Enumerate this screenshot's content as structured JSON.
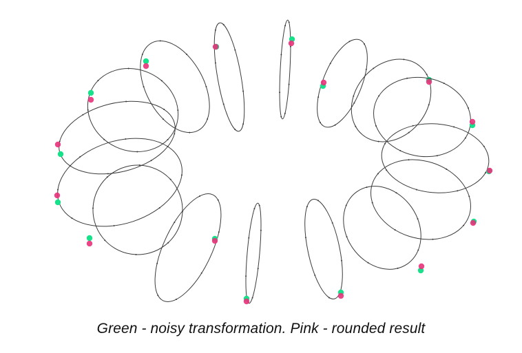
{
  "caption": "Green - noisy transformation.   Pink - rounded result",
  "colors": {
    "ellipse_stroke": "#3a3a3a",
    "noisy_point": "#19e08a",
    "rounded_point": "#e8327a",
    "background": "#ffffff"
  },
  "legend": {
    "noisy": "Green - noisy transformation",
    "rounded": "Pink - rounded result"
  }
}
